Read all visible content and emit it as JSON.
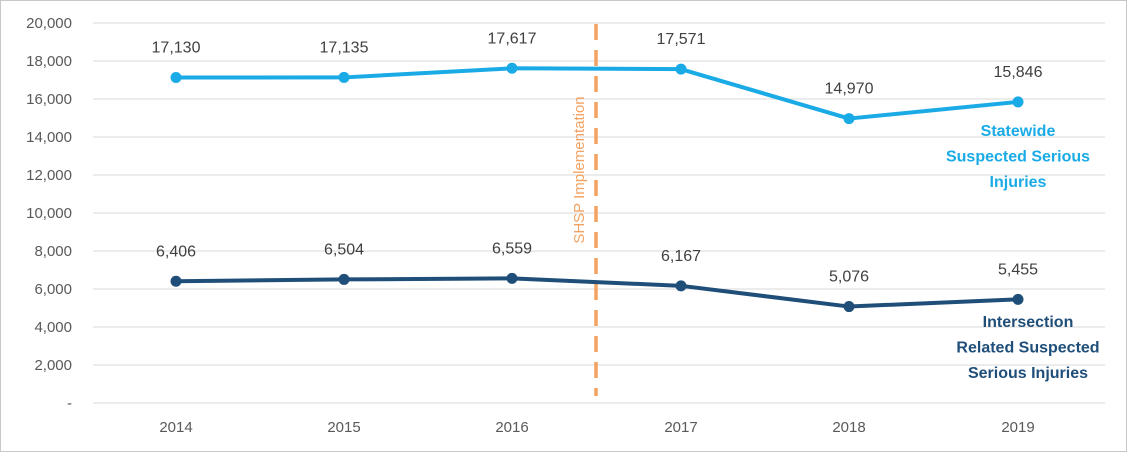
{
  "chart_data": {
    "type": "line",
    "categories": [
      "2014",
      "2015",
      "2016",
      "2017",
      "2018",
      "2019"
    ],
    "ylim": [
      0,
      20000
    ],
    "ytick_values": [
      0,
      2000,
      4000,
      6000,
      8000,
      10000,
      12000,
      14000,
      16000,
      18000,
      20000
    ],
    "ytick_labels": [
      "-",
      "2,000",
      "4,000",
      "6,000",
      "8,000",
      "10,000",
      "12,000",
      "14,000",
      "16,000",
      "18,000",
      "20,000"
    ],
    "grid": true,
    "series": [
      {
        "name": "Statewide Suspected Serious Injuries",
        "label_lines": [
          "Statewide",
          "Suspected Serious",
          "Injuries"
        ],
        "values": [
          17130,
          17135,
          17617,
          17571,
          14970,
          15846
        ],
        "value_labels": [
          "17,130",
          "17,135",
          "17,617",
          "17,571",
          "14,970",
          "15,846"
        ],
        "color": "#1AABE6"
      },
      {
        "name": "Intersection Related Suspected Serious Injuries",
        "label_lines": [
          "Intersection",
          "Related Suspected",
          "Serious Injuries"
        ],
        "values": [
          6406,
          6504,
          6559,
          6167,
          5076,
          5455
        ],
        "value_labels": [
          "6,406",
          "6,504",
          "6,559",
          "6,167",
          "5,076",
          "5,455"
        ],
        "color": "#1F4E79"
      }
    ],
    "annotation": {
      "text": "SHSP Implementation",
      "between": [
        "2016",
        "2017"
      ],
      "color": "#F4A261",
      "style": "dashed"
    }
  }
}
